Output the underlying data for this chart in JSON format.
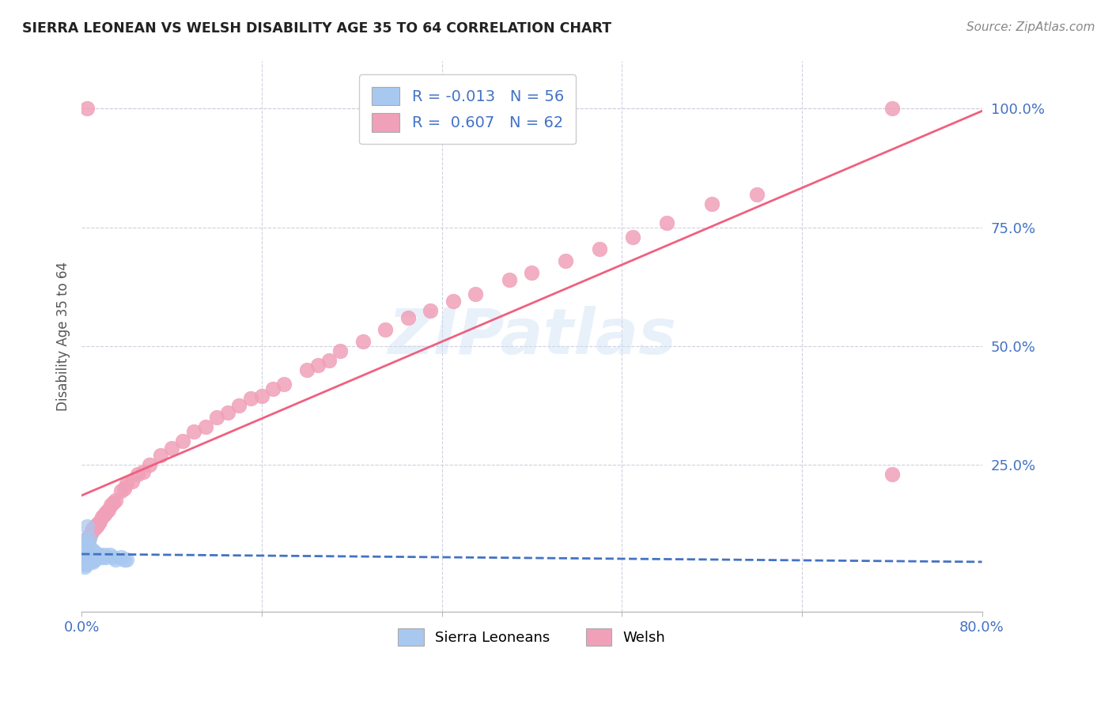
{
  "title": "SIERRA LEONEAN VS WELSH DISABILITY AGE 35 TO 64 CORRELATION CHART",
  "source": "Source: ZipAtlas.com",
  "ylabel": "Disability Age 35 to 64",
  "xlim": [
    0.0,
    0.8
  ],
  "ylim": [
    -0.06,
    1.1
  ],
  "x_ticks": [
    0.0,
    0.16,
    0.32,
    0.48,
    0.64,
    0.8
  ],
  "x_tick_labels": [
    "0.0%",
    "",
    "",
    "",
    "",
    "80.0%"
  ],
  "y_ticks_right": [
    0.25,
    0.5,
    0.75,
    1.0
  ],
  "y_tick_labels_right": [
    "25.0%",
    "50.0%",
    "75.0%",
    "100.0%"
  ],
  "legend_label1": "R = -0.013   N = 56",
  "legend_label2": "R =  0.607   N = 62",
  "sierra_color": "#a8c8f0",
  "welsh_color": "#f0a0b8",
  "sierra_line_color": "#4472c4",
  "welsh_line_color": "#f06080",
  "background_color": "#ffffff",
  "watermark": "ZIPatlas",
  "grid_color": "#d0d0e0",
  "axis_label_color": "#4472c4",
  "title_color": "#222222",
  "source_color": "#888888",
  "sierra_x": [
    0.001,
    0.001,
    0.001,
    0.001,
    0.002,
    0.002,
    0.002,
    0.002,
    0.002,
    0.003,
    0.003,
    0.003,
    0.003,
    0.003,
    0.003,
    0.004,
    0.004,
    0.004,
    0.004,
    0.004,
    0.005,
    0.005,
    0.005,
    0.005,
    0.006,
    0.006,
    0.006,
    0.006,
    0.007,
    0.007,
    0.007,
    0.008,
    0.008,
    0.008,
    0.009,
    0.009,
    0.01,
    0.01,
    0.01,
    0.011,
    0.011,
    0.012,
    0.012,
    0.013,
    0.014,
    0.015,
    0.016,
    0.018,
    0.02,
    0.022,
    0.025,
    0.028,
    0.03,
    0.035,
    0.038,
    0.04
  ],
  "sierra_y": [
    0.05,
    0.06,
    0.07,
    0.08,
    0.04,
    0.055,
    0.065,
    0.075,
    0.085,
    0.035,
    0.05,
    0.06,
    0.07,
    0.08,
    0.09,
    0.04,
    0.055,
    0.065,
    0.075,
    0.085,
    0.045,
    0.055,
    0.065,
    0.12,
    0.05,
    0.06,
    0.07,
    0.08,
    0.045,
    0.055,
    0.095,
    0.05,
    0.06,
    0.07,
    0.05,
    0.065,
    0.045,
    0.06,
    0.07,
    0.05,
    0.065,
    0.05,
    0.065,
    0.055,
    0.06,
    0.055,
    0.06,
    0.055,
    0.06,
    0.055,
    0.06,
    0.055,
    0.05,
    0.055,
    0.05,
    0.05
  ],
  "welsh_x": [
    0.003,
    0.004,
    0.004,
    0.005,
    0.006,
    0.007,
    0.008,
    0.009,
    0.01,
    0.011,
    0.012,
    0.013,
    0.014,
    0.015,
    0.016,
    0.018,
    0.02,
    0.022,
    0.024,
    0.026,
    0.028,
    0.03,
    0.035,
    0.038,
    0.04,
    0.045,
    0.05,
    0.055,
    0.06,
    0.07,
    0.08,
    0.09,
    0.1,
    0.11,
    0.12,
    0.13,
    0.14,
    0.15,
    0.16,
    0.17,
    0.18,
    0.2,
    0.21,
    0.22,
    0.23,
    0.25,
    0.27,
    0.29,
    0.31,
    0.33,
    0.35,
    0.38,
    0.4,
    0.43,
    0.46,
    0.49,
    0.52,
    0.56,
    0.6,
    0.72,
    0.005,
    0.72
  ],
  "welsh_y": [
    0.06,
    0.07,
    0.08,
    0.095,
    0.09,
    0.1,
    0.105,
    0.11,
    0.115,
    0.115,
    0.12,
    0.12,
    0.125,
    0.125,
    0.13,
    0.14,
    0.145,
    0.15,
    0.155,
    0.165,
    0.17,
    0.175,
    0.195,
    0.2,
    0.21,
    0.215,
    0.23,
    0.235,
    0.25,
    0.27,
    0.285,
    0.3,
    0.32,
    0.33,
    0.35,
    0.36,
    0.375,
    0.39,
    0.395,
    0.41,
    0.42,
    0.45,
    0.46,
    0.47,
    0.49,
    0.51,
    0.535,
    0.56,
    0.575,
    0.595,
    0.61,
    0.64,
    0.655,
    0.68,
    0.705,
    0.73,
    0.76,
    0.8,
    0.82,
    0.23,
    1.0,
    1.0
  ]
}
